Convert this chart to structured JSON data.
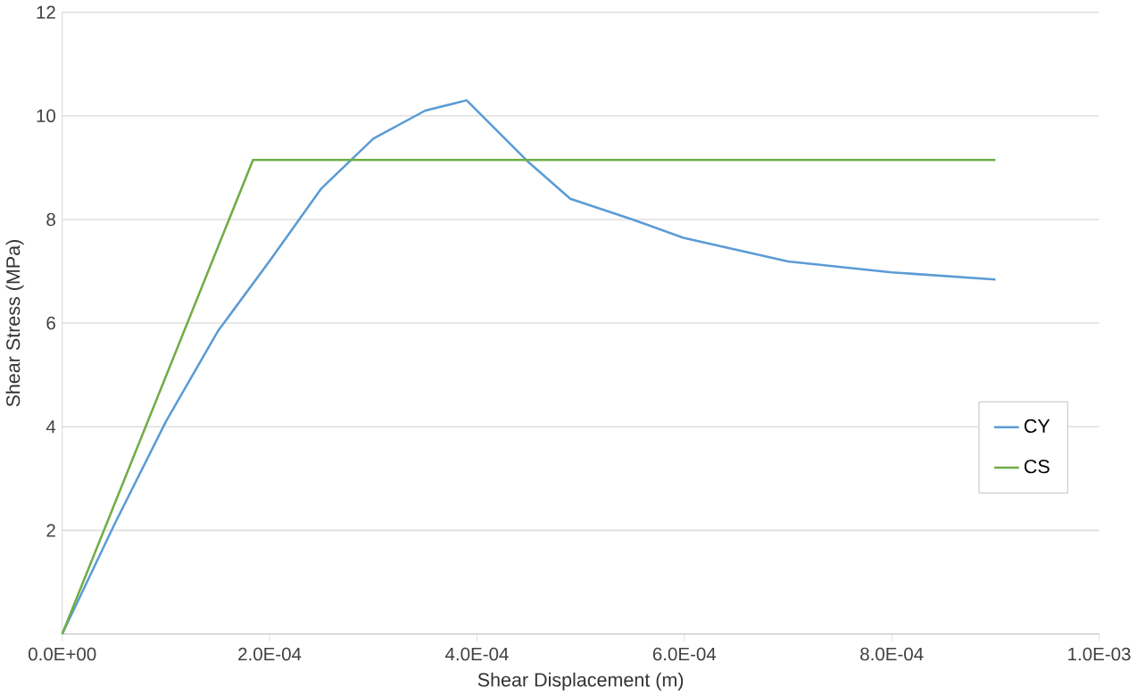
{
  "chart_data": {
    "type": "line",
    "xlabel": "Shear Displacement (m)",
    "ylabel": "Shear Stress (MPa)",
    "xlim": [
      0,
      0.001
    ],
    "ylim": [
      0,
      12
    ],
    "xticks": [
      {
        "value": 0,
        "label": "0.0E+00"
      },
      {
        "value": 0.0002,
        "label": "2.0E-04"
      },
      {
        "value": 0.0004,
        "label": "4.0E-04"
      },
      {
        "value": 0.0006,
        "label": "6.0E-04"
      },
      {
        "value": 0.0008,
        "label": "8.0E-04"
      },
      {
        "value": 0.001,
        "label": "1.0E-03"
      }
    ],
    "yticks": [
      {
        "value": 0,
        "label": null
      },
      2,
      4,
      6,
      8,
      10,
      12
    ],
    "grid": "y",
    "legend": "right",
    "line_style": "solid",
    "marker": "none",
    "series": [
      {
        "name": "CY",
        "color": "#5b9bd5",
        "x": [
          0,
          5e-05,
          0.0001,
          0.00015,
          0.0002,
          0.00025,
          0.0003,
          0.00035,
          0.00039,
          0.00042,
          0.00045,
          0.00049,
          0.00055,
          0.0006,
          0.0007,
          0.0008,
          0.0009
        ],
        "values": [
          0,
          2.1,
          4.1,
          5.84,
          7.2,
          8.6,
          9.56,
          10.1,
          10.3,
          9.7,
          9.1,
          8.4,
          8.0,
          7.64,
          7.19,
          6.98,
          6.84
        ]
      },
      {
        "name": "CS",
        "color": "#70ad47",
        "x": [
          0,
          0.000184,
          0.0009
        ],
        "values": [
          0,
          9.15,
          9.15
        ]
      }
    ]
  }
}
